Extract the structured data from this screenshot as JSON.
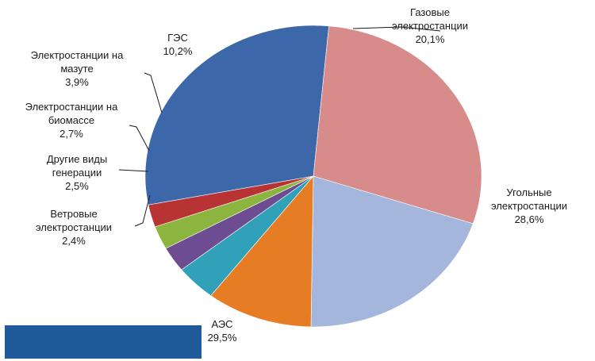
{
  "chart_data": {
    "type": "pie",
    "title": "",
    "start_angle_deg": 169,
    "slices": [
      {
        "name": "АЭС",
        "value": 29.5,
        "label_lines": [
          "АЭС",
          "29,5%"
        ],
        "color": "#3c67a8"
      },
      {
        "name": "Угольные электростанции",
        "value": 28.6,
        "label_lines": [
          "Угольные",
          "электростанции",
          "28,6%"
        ],
        "color": "#d78c8b"
      },
      {
        "name": "Газовые электростанции",
        "value": 20.1,
        "label_lines": [
          "Газовые",
          "электростанции",
          "20,1%"
        ],
        "color": "#a5b6dc"
      },
      {
        "name": "ГЭС",
        "value": 10.2,
        "label_lines": [
          "ГЭС",
          "10,2%"
        ],
        "color": "#e67d24"
      },
      {
        "name": "Электростанции на мазуте",
        "value": 3.9,
        "label_lines": [
          "Электростанции на",
          "мазуте",
          "3,9%"
        ],
        "color": "#30a1b8"
      },
      {
        "name": "Электростанции на биомассе",
        "value": 2.7,
        "label_lines": [
          "Электростанции на",
          "биомассе",
          "2,7%"
        ],
        "color": "#6d4c92"
      },
      {
        "name": "Другие виды генерации",
        "value": 2.5,
        "label_lines": [
          "Другие виды",
          "генерации",
          "2,5%"
        ],
        "color": "#8cb53f"
      },
      {
        "name": "Ветровые электростанции",
        "value": 2.4,
        "label_lines": [
          "Ветровые",
          "электростанции",
          "2,4%"
        ],
        "color": "#b83333"
      }
    ]
  },
  "overlay": {
    "color": "#1f5a9a"
  }
}
